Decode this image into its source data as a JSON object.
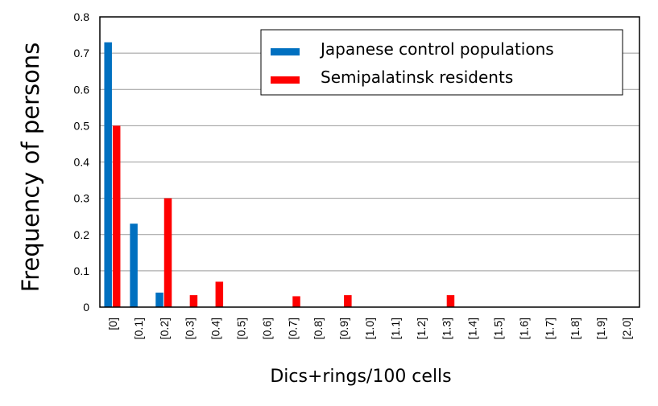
{
  "chart_data": {
    "type": "bar",
    "title": "",
    "xlabel": "Dics+rings/100 cells",
    "ylabel": "Frequency of persons",
    "ylim": [
      0,
      0.8
    ],
    "yticks": [
      0,
      0.1,
      0.2,
      0.3,
      0.4,
      0.5,
      0.6,
      0.7,
      0.8
    ],
    "ytick_labels": [
      "0",
      "0.1",
      "0.2",
      "0.3",
      "0.4",
      "0.5",
      "0.6",
      "0.7",
      "0.8"
    ],
    "grid": true,
    "legend_position": "top-right",
    "categories": [
      "[0]",
      "[0.1]",
      "[0.2]",
      "[0.3]",
      "[0.4]",
      "[0.5]",
      "[0.6]",
      "[0.7]",
      "[0.8]",
      "[0.9]",
      "[1.0]",
      "[1.1]",
      "[1.2]",
      "[1.3]",
      "[1.4]",
      "[1.5]",
      "[1.6]",
      "[1.7]",
      "[1.8]",
      "[1.9]",
      "[2.0]"
    ],
    "series": [
      {
        "name": "Japanese control populations",
        "color": "#0070C0",
        "values": [
          0.73,
          0.23,
          0.04,
          0,
          0,
          0,
          0,
          0,
          0,
          0,
          0,
          0,
          0,
          0,
          0,
          0,
          0,
          0,
          0,
          0,
          0
        ]
      },
      {
        "name": "Semipalatinsk residents",
        "color": "#FF0000",
        "values": [
          0.5,
          0,
          0.3,
          0.033,
          0.07,
          0,
          0,
          0.03,
          0,
          0.033,
          0,
          0,
          0,
          0.033,
          0,
          0,
          0,
          0,
          0,
          0,
          0
        ]
      }
    ]
  }
}
